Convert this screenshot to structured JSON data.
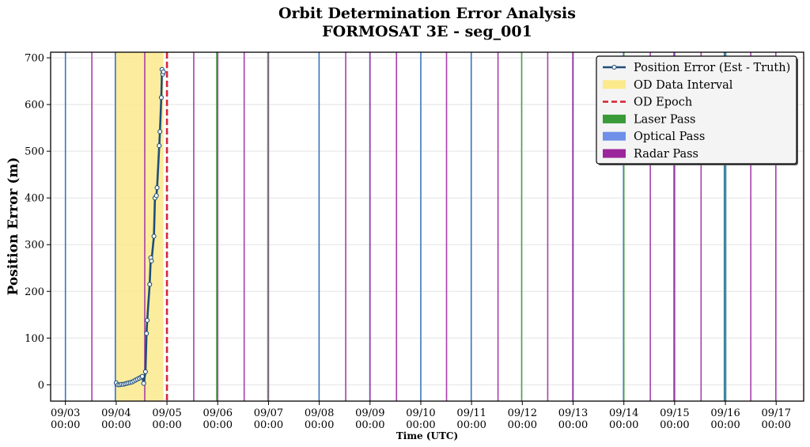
{
  "chart_data": {
    "type": "line",
    "title": "Orbit Determination Error Analysis",
    "subtitle": "FORMOSAT 3E - seg_001",
    "xlabel": "Time (UTC)",
    "ylabel": "Position Error (m)",
    "xlim": [
      "09/02 17:00",
      "09/17 13:00"
    ],
    "ylim": [
      -35,
      712
    ],
    "x_ticks": [
      "09/03 00:00",
      "09/04 00:00",
      "09/05 00:00",
      "09/06 00:00",
      "09/07 00:00",
      "09/08 00:00",
      "09/09 00:00",
      "09/10 00:00",
      "09/11 00:00",
      "09/12 00:00",
      "09/13 00:00",
      "09/14 00:00",
      "09/15 00:00",
      "09/16 00:00",
      "09/17 00:00"
    ],
    "y_ticks": [
      0,
      100,
      200,
      300,
      400,
      500,
      600,
      700
    ],
    "grid": true,
    "legend_position": "top-right",
    "od_data_interval": {
      "start": "09/04 00:00",
      "end": "09/04 22:20"
    },
    "od_epoch": "09/05 00:00",
    "series": [
      {
        "name": "Position Error (Est - Truth)",
        "color": "#1f4e79",
        "x": [
          "09/04 00:00",
          "09/04 00:50",
          "09/04 01:40",
          "09/04 02:30",
          "09/04 03:20",
          "09/04 04:10",
          "09/04 05:00",
          "09/04 05:50",
          "09/04 06:40",
          "09/04 07:30",
          "09/04 08:20",
          "09/04 09:10",
          "09/04 10:00",
          "09/04 10:50",
          "09/04 11:40",
          "09/04 12:20",
          "09/04 13:00",
          "09/04 13:50",
          "09/04 14:20",
          "09/04 14:40",
          "09/04 15:50",
          "09/04 16:20",
          "09/04 16:40",
          "09/04 17:50",
          "09/04 18:20",
          "09/04 19:00",
          "09/04 19:20",
          "09/04 20:20",
          "09/04 20:40",
          "09/04 21:20",
          "09/04 21:40",
          "09/04 22:00",
          "09/04 22:20"
        ],
        "y": [
          4,
          0,
          0,
          1,
          1,
          2,
          3,
          4,
          5,
          6,
          8,
          10,
          12,
          14,
          16,
          18,
          3,
          28,
          110,
          138,
          215,
          272,
          265,
          318,
          400,
          405,
          422,
          512,
          542,
          615,
          675,
          665,
          670
        ]
      }
    ],
    "passes": [
      {
        "type": "Optical",
        "times": [
          "09/03 00:00",
          "09/03 23:35",
          "09/07 23:55",
          "09/08 23:55",
          "09/10 00:00",
          "09/10 23:50",
          "09/13 00:00",
          "09/13 23:50",
          "09/14 23:40",
          "09/15 23:30",
          "09/16 00:10"
        ]
      },
      {
        "type": "Radar",
        "times": [
          "09/03 12:30",
          "09/04 13:30",
          "09/05 12:40",
          "09/06 00:00",
          "09/06 12:30",
          "09/07 00:00",
          "09/08 12:30",
          "09/09 00:00",
          "09/09 12:30",
          "09/10 12:10",
          "09/11 12:30",
          "09/12 12:00",
          "09/12 23:50",
          "09/14 12:30",
          "09/15 00:00",
          "09/15 12:30",
          "09/16 12:00",
          "09/16 23:50"
        ]
      },
      {
        "type": "Laser",
        "times": [
          "09/05 23:30",
          "09/06 23:40",
          "09/11 23:40",
          "09/14 00:00",
          "09/16 00:00"
        ]
      }
    ],
    "legend": [
      {
        "label": "Position Error (Est - Truth)",
        "kind": "line-marker",
        "color": "#1f4e79"
      },
      {
        "label": "OD Data Interval",
        "kind": "patch",
        "color": "#fce98c"
      },
      {
        "label": "OD Epoch",
        "kind": "dashed",
        "color": "#d62839"
      },
      {
        "label": "Laser Pass",
        "kind": "patch",
        "color": "#3a9a3a"
      },
      {
        "label": "Optical Pass",
        "kind": "patch",
        "color": "#6f8fe8"
      },
      {
        "label": "Radar Pass",
        "kind": "patch",
        "color": "#9b259b"
      }
    ],
    "colors": {
      "optical": "#2d6fbd",
      "radar": "#a236a6",
      "laser": "#46a046",
      "interval": "#fce98c",
      "epoch": "#d62839",
      "line": "#1f4e79"
    }
  }
}
